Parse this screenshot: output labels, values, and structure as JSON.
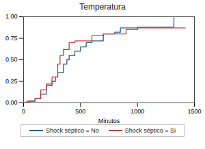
{
  "chart_data": {
    "type": "line",
    "title": "Temperatura",
    "x_label": "Minutos",
    "line_style": "step",
    "xlim": [
      0,
      1500
    ],
    "xticks": [
      0,
      500,
      1000,
      1500
    ],
    "ylim": [
      0,
      1
    ],
    "yticks": [
      {
        "value": 0,
        "label": "0.00"
      },
      {
        "value": 0.25,
        "label": "0.25"
      },
      {
        "value": 0.5,
        "label": "0.50"
      },
      {
        "value": 0.75,
        "label": "0.75"
      },
      {
        "value": 1,
        "label": "1.00"
      }
    ],
    "series": [
      {
        "name": "Shock séptico = No",
        "color": "#2f5b8c",
        "x": [
          0,
          50,
          100,
          150,
          200,
          250,
          280,
          300,
          350,
          380,
          400,
          450,
          500,
          550,
          600,
          700,
          800,
          850,
          1000,
          1320
        ],
        "values": [
          0,
          0.02,
          0.05,
          0.1,
          0.2,
          0.25,
          0.3,
          0.35,
          0.45,
          0.5,
          0.55,
          0.6,
          0.65,
          0.7,
          0.72,
          0.8,
          0.82,
          0.87,
          0.88,
          1.0
        ]
      },
      {
        "name": "Shock séptico = Si",
        "color": "#c0403a",
        "x": [
          0,
          30,
          100,
          150,
          200,
          250,
          300,
          320,
          350,
          400,
          450,
          600,
          700,
          900,
          1000,
          1420
        ],
        "values": [
          0,
          0.02,
          0.05,
          0.15,
          0.22,
          0.3,
          0.45,
          0.55,
          0.62,
          0.7,
          0.72,
          0.78,
          0.8,
          0.85,
          0.87,
          0.87
        ]
      }
    ]
  }
}
